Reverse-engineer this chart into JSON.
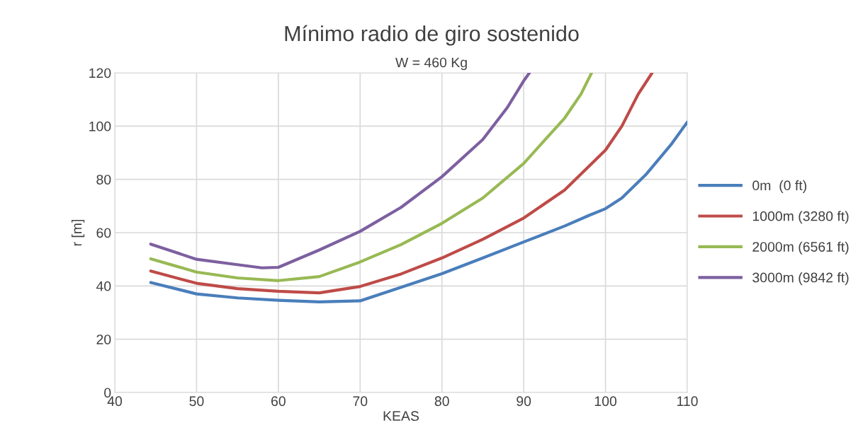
{
  "chart_data": {
    "type": "line",
    "title": "Mínimo radio de giro sostenido",
    "subtitle": "W = 460 Kg",
    "xlabel": "KEAS",
    "ylabel": "r [m]",
    "xlim": [
      40,
      110
    ],
    "xticks": [
      40,
      50,
      60,
      70,
      80,
      90,
      100,
      110
    ],
    "ylim": [
      0,
      120
    ],
    "yticks": [
      0,
      20,
      40,
      60,
      80,
      100,
      120
    ],
    "grid": true,
    "legend": "right",
    "line_style": "solid",
    "series": [
      {
        "name": "0m  (0 ft)",
        "color": "#4a7ebb",
        "x": [
          44.4,
          50,
          55,
          60,
          65,
          70,
          75,
          80,
          85,
          90,
          95,
          98,
          100,
          102,
          105,
          108,
          110
        ],
        "values": [
          41.3,
          37,
          35.5,
          34.6,
          34,
          34.4,
          39.5,
          44.6,
          50.5,
          56.5,
          62.5,
          66.5,
          69,
          73,
          82,
          93,
          101.5
        ]
      },
      {
        "name": "1000m (3280 ft)",
        "color": "#be4b48",
        "x": [
          44.4,
          50,
          55,
          60,
          65,
          70,
          75,
          80,
          85,
          90,
          95,
          100,
          102,
          104,
          105.7
        ],
        "values": [
          45.6,
          41,
          39,
          38,
          37.4,
          39.8,
          44.5,
          50.5,
          57.5,
          65.5,
          76,
          91,
          100,
          112,
          120
        ]
      },
      {
        "name": "2000m (6561 ft)",
        "color": "#98b954",
        "x": [
          44.4,
          50,
          55,
          60,
          65,
          70,
          75,
          80,
          85,
          90,
          95,
          97,
          98.3
        ],
        "values": [
          50.2,
          45.2,
          43,
          42,
          43.5,
          49,
          55.5,
          63.5,
          73,
          86,
          103,
          112,
          120
        ]
      },
      {
        "name": "3000m (9842 ft)",
        "color": "#7d60a0",
        "x": [
          44.4,
          50,
          55,
          58,
          60,
          65,
          70,
          75,
          80,
          85,
          88,
          90,
          90.7
        ],
        "values": [
          55.7,
          50,
          48,
          46.8,
          47,
          53.5,
          60.5,
          69.5,
          81,
          95,
          107,
          117,
          120
        ]
      }
    ]
  }
}
